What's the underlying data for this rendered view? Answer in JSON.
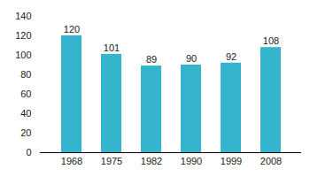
{
  "chart_data": {
    "type": "bar",
    "categories": [
      "1968",
      "1975",
      "1982",
      "1990",
      "1999",
      "2008"
    ],
    "values": [
      120,
      101,
      89,
      90,
      92,
      108
    ],
    "color": "#35b5cd",
    "ylim": [
      0,
      140
    ],
    "yticks": [
      0,
      20,
      40,
      60,
      80,
      100,
      120,
      140
    ],
    "grid": false,
    "data_labels": true
  }
}
